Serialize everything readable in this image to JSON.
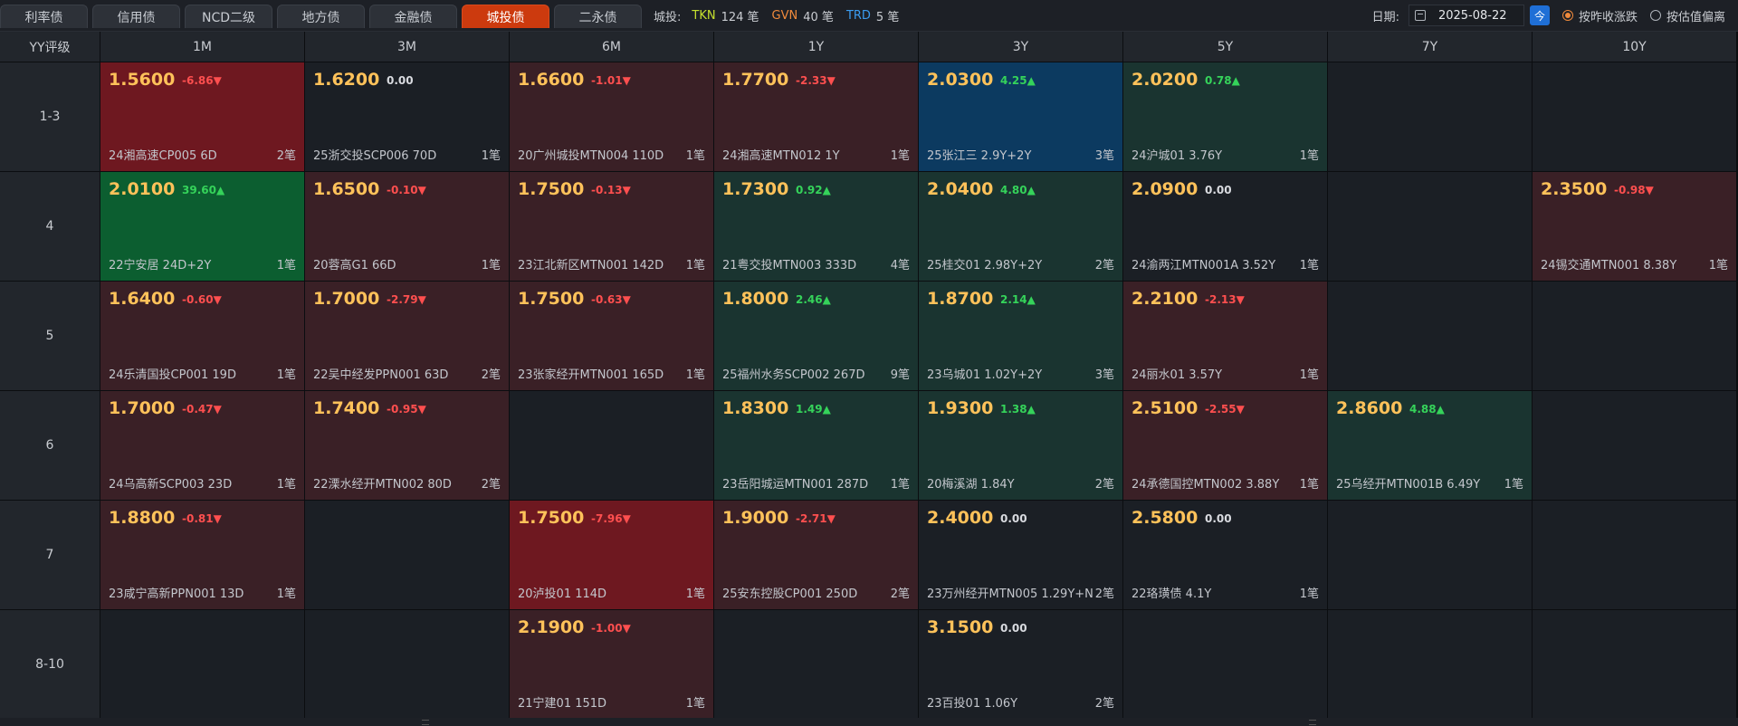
{
  "tabs": [
    {
      "label": "利率债",
      "active": false
    },
    {
      "label": "信用债",
      "active": false
    },
    {
      "label": "NCD二级",
      "active": false
    },
    {
      "label": "地方债",
      "active": false
    },
    {
      "label": "金融债",
      "active": false
    },
    {
      "label": "城投债",
      "active": true
    },
    {
      "label": "二永债",
      "active": false
    }
  ],
  "counts": {
    "label": "城投:",
    "tkn_label": "TKN",
    "tkn_value": "124 笔",
    "gvn_label": "GVN",
    "gvn_value": "40 笔",
    "trd_label": "TRD",
    "trd_value": "5 笔",
    "colors": {
      "tkn": "#c6e02e",
      "gvn": "#f08a3c",
      "trd": "#3b9cf0"
    }
  },
  "date": {
    "label": "日期:",
    "value": "2025-08-22",
    "today_label": "今",
    "icon": "calendar-icon"
  },
  "modes": [
    {
      "label": "按昨收涨跌",
      "selected": true
    },
    {
      "label": "按估值偏离",
      "selected": false
    }
  ],
  "grid": {
    "corner": "YY评级",
    "columns": [
      "1M",
      "3M",
      "6M",
      "1Y",
      "3Y",
      "5Y",
      "7Y",
      "10Y"
    ],
    "rows": [
      {
        "label": "1-3",
        "cells": [
          {
            "rate": "1.5600",
            "change": "-6.86▼",
            "dir": "down",
            "bond": "24湘高速CP005 6D",
            "count": "2笔",
            "tone": "red"
          },
          {
            "rate": "1.6200",
            "change": "0.00",
            "dir": "flat",
            "bond": "25浙交投SCP006 70D",
            "count": "1笔",
            "tone": "neutral"
          },
          {
            "rate": "1.6600",
            "change": "-1.01▼",
            "dir": "down",
            "bond": "20广州城投MTN004 110D",
            "count": "1笔",
            "tone": "dk-red"
          },
          {
            "rate": "1.7700",
            "change": "-2.33▼",
            "dir": "down",
            "bond": "24湘高速MTN012 1Y",
            "count": "1笔",
            "tone": "dk-red"
          },
          {
            "rate": "2.0300",
            "change": "4.25▲",
            "dir": "up",
            "bond": "25张江三 2.9Y+2Y",
            "count": "3笔",
            "tone": "blue"
          },
          {
            "rate": "2.0200",
            "change": "0.78▲",
            "dir": "up",
            "bond": "24沪城01 3.76Y",
            "count": "1笔",
            "tone": "dk-green"
          },
          null,
          null
        ]
      },
      {
        "label": "4",
        "cells": [
          {
            "rate": "2.0100",
            "change": "39.60▲",
            "dir": "up",
            "bond": "22宁安居 24D+2Y",
            "count": "1笔",
            "tone": "green"
          },
          {
            "rate": "1.6500",
            "change": "-0.10▼",
            "dir": "down",
            "bond": "20蓉高G1 66D",
            "count": "1笔",
            "tone": "dk-red"
          },
          {
            "rate": "1.7500",
            "change": "-0.13▼",
            "dir": "down",
            "bond": "23江北新区MTN001 142D",
            "count": "1笔",
            "tone": "dk-red"
          },
          {
            "rate": "1.7300",
            "change": "0.92▲",
            "dir": "up",
            "bond": "21粤交投MTN003 333D",
            "count": "4笔",
            "tone": "dk-green"
          },
          {
            "rate": "2.0400",
            "change": "4.80▲",
            "dir": "up",
            "bond": "25桂交01 2.98Y+2Y",
            "count": "2笔",
            "tone": "dk-green"
          },
          {
            "rate": "2.0900",
            "change": "0.00",
            "dir": "flat",
            "bond": "24渝两江MTN001A 3.52Y",
            "count": "1笔",
            "tone": "neutral"
          },
          null,
          {
            "rate": "2.3500",
            "change": "-0.98▼",
            "dir": "down",
            "bond": "24锡交通MTN001 8.38Y",
            "count": "1笔",
            "tone": "dk-red"
          }
        ]
      },
      {
        "label": "5",
        "cells": [
          {
            "rate": "1.6400",
            "change": "-0.60▼",
            "dir": "down",
            "bond": "24乐清国投CP001 19D",
            "count": "1笔",
            "tone": "dk-red"
          },
          {
            "rate": "1.7000",
            "change": "-2.79▼",
            "dir": "down",
            "bond": "22吴中经发PPN001 63D",
            "count": "2笔",
            "tone": "dk-red"
          },
          {
            "rate": "1.7500",
            "change": "-0.63▼",
            "dir": "down",
            "bond": "23张家经开MTN001 165D",
            "count": "1笔",
            "tone": "dk-red"
          },
          {
            "rate": "1.8000",
            "change": "2.46▲",
            "dir": "up",
            "bond": "25福州水务SCP002 267D",
            "count": "9笔",
            "tone": "dk-green"
          },
          {
            "rate": "1.8700",
            "change": "2.14▲",
            "dir": "up",
            "bond": "23乌城01 1.02Y+2Y",
            "count": "3笔",
            "tone": "dk-green"
          },
          {
            "rate": "2.2100",
            "change": "-2.13▼",
            "dir": "down",
            "bond": "24丽水01 3.57Y",
            "count": "1笔",
            "tone": "dk-red"
          },
          null,
          null
        ]
      },
      {
        "label": "6",
        "cells": [
          {
            "rate": "1.7000",
            "change": "-0.47▼",
            "dir": "down",
            "bond": "24乌高新SCP003 23D",
            "count": "1笔",
            "tone": "dk-red"
          },
          {
            "rate": "1.7400",
            "change": "-0.95▼",
            "dir": "down",
            "bond": "22溧水经开MTN002 80D",
            "count": "2笔",
            "tone": "dk-red"
          },
          null,
          {
            "rate": "1.8300",
            "change": "1.49▲",
            "dir": "up",
            "bond": "23岳阳城运MTN001 287D",
            "count": "1笔",
            "tone": "dk-green"
          },
          {
            "rate": "1.9300",
            "change": "1.38▲",
            "dir": "up",
            "bond": "20梅溪湖 1.84Y",
            "count": "2笔",
            "tone": "dk-green"
          },
          {
            "rate": "2.5100",
            "change": "-2.55▼",
            "dir": "down",
            "bond": "24承德国控MTN002 3.88Y",
            "count": "1笔",
            "tone": "dk-red"
          },
          {
            "rate": "2.8600",
            "change": "4.88▲",
            "dir": "up",
            "bond": "25乌经开MTN001B 6.49Y",
            "count": "1笔",
            "tone": "dk-green"
          },
          null
        ]
      },
      {
        "label": "7",
        "cells": [
          {
            "rate": "1.8800",
            "change": "-0.81▼",
            "dir": "down",
            "bond": "23咸宁高新PPN001 13D",
            "count": "1笔",
            "tone": "dk-red"
          },
          null,
          {
            "rate": "1.7500",
            "change": "-7.96▼",
            "dir": "down",
            "bond": "20泸投01 114D",
            "count": "1笔",
            "tone": "red"
          },
          {
            "rate": "1.9000",
            "change": "-2.71▼",
            "dir": "down",
            "bond": "25安东控股CP001 250D",
            "count": "2笔",
            "tone": "dk-red"
          },
          {
            "rate": "2.4000",
            "change": "0.00",
            "dir": "flat",
            "bond": "23万州经开MTN005 1.29Y+N",
            "count": "2笔",
            "tone": "neutral"
          },
          {
            "rate": "2.5800",
            "change": "0.00",
            "dir": "flat",
            "bond": "22珞璜债 4.1Y",
            "count": "1笔",
            "tone": "neutral"
          },
          null,
          null
        ]
      },
      {
        "label": "8-10",
        "cells": [
          null,
          null,
          {
            "rate": "2.1900",
            "change": "-1.00▼",
            "dir": "down",
            "bond": "21宁建01 151D",
            "count": "1笔",
            "tone": "dk-red"
          },
          null,
          {
            "rate": "3.1500",
            "change": "0.00",
            "dir": "flat",
            "bond": "23百投01 1.06Y",
            "count": "2笔",
            "tone": "neutral"
          },
          null,
          null,
          null
        ]
      }
    ]
  }
}
